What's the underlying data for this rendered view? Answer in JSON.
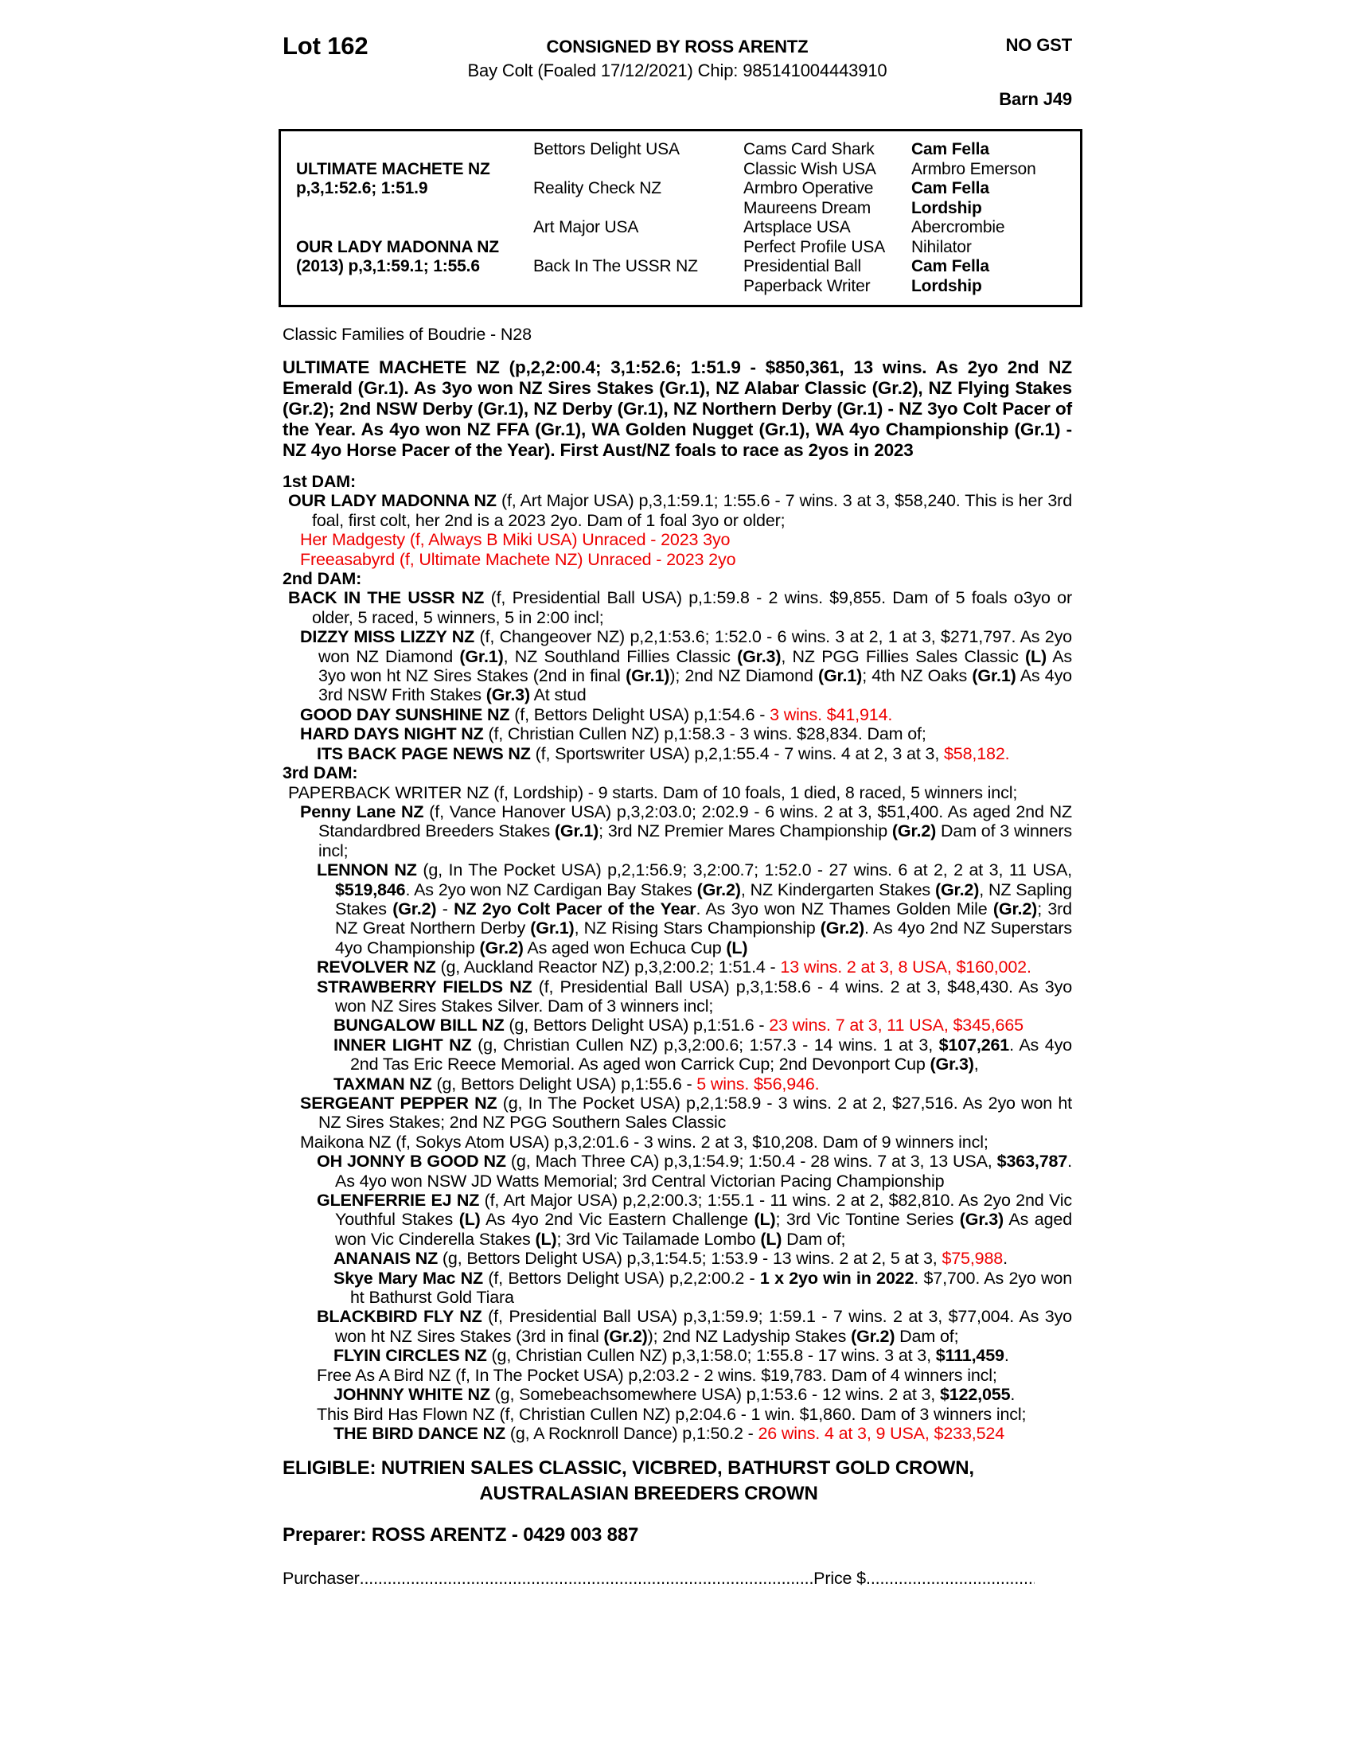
{
  "header": {
    "lot": "Lot 162",
    "consigned": "CONSIGNED BY ROSS ARENTZ",
    "no_gst": "NO GST",
    "subtitle": "Bay Colt (Foaled 17/12/2021) Chip: 985141004443910",
    "barn": "Barn J49"
  },
  "pedigree_table": {
    "sire_name": "ULTIMATE MACHETE NZ",
    "sire_record": "p,3,1:52.6; 1:51.9",
    "dam_name": "OUR LADY MADONNA NZ",
    "dam_record": "(2013) p,3,1:59.1; 1:55.6",
    "rows": [
      [
        {
          "t": ""
        },
        {
          "t": "Bettors Delight USA"
        },
        {
          "t": "Cams Card Shark"
        },
        {
          "t": "Cam Fella",
          "b": 1
        }
      ],
      [
        {
          "t": "ULTIMATE MACHETE NZ",
          "b": 1
        },
        {
          "t": ""
        },
        {
          "t": "Classic Wish USA"
        },
        {
          "t": "Armbro Emerson"
        }
      ],
      [
        {
          "t": "p,3,1:52.6; 1:51.9",
          "b": 1
        },
        {
          "t": "Reality Check NZ"
        },
        {
          "t": "Armbro Operative"
        },
        {
          "t": "Cam Fella",
          "b": 1
        }
      ],
      [
        {
          "t": ""
        },
        {
          "t": ""
        },
        {
          "t": "Maureens Dream"
        },
        {
          "t": "Lordship",
          "b": 1
        }
      ],
      [
        {
          "t": ""
        },
        {
          "t": "Art Major USA"
        },
        {
          "t": "Artsplace USA"
        },
        {
          "t": "Abercrombie"
        }
      ],
      [
        {
          "t": "OUR LADY MADONNA NZ",
          "b": 1
        },
        {
          "t": ""
        },
        {
          "t": "Perfect Profile USA"
        },
        {
          "t": "Nihilator"
        }
      ],
      [
        {
          "t": "(2013) p,3,1:59.1; 1:55.6",
          "b": 1
        },
        {
          "t": "Back In The USSR NZ"
        },
        {
          "t": "Presidential Ball"
        },
        {
          "t": "Cam Fella",
          "b": 1
        }
      ],
      [
        {
          "t": ""
        },
        {
          "t": ""
        },
        {
          "t": "Paperback Writer"
        },
        {
          "t": "Lordship",
          "b": 1
        }
      ]
    ]
  },
  "family_note": "Classic Families of Boudrie - N28",
  "sire_summary": "ULTIMATE MACHETE NZ (p,2,2:00.4; 3,1:52.6; 1:51.9 - $850,361, 13 wins. As 2yo 2nd NZ Emerald (Gr.1). As 3yo won NZ Sires Stakes (Gr.1), NZ Alabar Classic (Gr.2), NZ Flying Stakes (Gr.2); 2nd NSW Derby (Gr.1), NZ Derby (Gr.1), NZ Northern Derby (Gr.1) - NZ 3yo Colt Pacer of the Year. As 4yo won NZ FFA (Gr.1), WA Golden Nugget (Gr.1), WA 4yo Championship (Gr.1) - NZ 4yo Horse Pacer of the Year). First Aust/NZ foals to race as 2yos in 2023",
  "entries": [
    {
      "c": "i0",
      "n": "dam-header-1",
      "segs": [
        [
          "1st DAM:",
          "b"
        ]
      ]
    },
    {
      "c": "iD",
      "n": "entry-our-lady-madonna",
      "segs": [
        [
          "OUR LADY MADONNA NZ ",
          "b"
        ],
        [
          "(f, Art Major USA) p,3,1:59.1; 1:55.6 - 7 wins. 3 at 3, $58,240. This is her 3rd foal, first colt, her 2nd is a 2023 2yo. Dam of 1 foal 3yo or older;",
          ""
        ]
      ]
    },
    {
      "c": "i1",
      "n": "entry-her-madgesty",
      "segs": [
        [
          "Her Madgesty (f, Always B Miki USA) Unraced - 2023 3yo",
          "r"
        ]
      ]
    },
    {
      "c": "i1",
      "n": "entry-freeasabyrd",
      "segs": [
        [
          "Freeasabyrd (f, Ultimate Machete NZ) Unraced - 2023 2yo",
          "r"
        ]
      ]
    },
    {
      "c": "i0",
      "n": "dam-header-2",
      "segs": [
        [
          "2nd DAM:",
          "b"
        ]
      ]
    },
    {
      "c": "iD",
      "n": "entry-back-in-the-ussr",
      "segs": [
        [
          "BACK IN THE USSR NZ ",
          "b"
        ],
        [
          "(f, Presidential Ball USA) p,1:59.8 - 2 wins. $9,855. Dam of 5 foals o3yo or older, 5 raced, 5 winners, 5 in 2:00 incl;",
          ""
        ]
      ]
    },
    {
      "c": "i1",
      "n": "entry-dizzy-miss-lizzy",
      "segs": [
        [
          "DIZZY MISS LIZZY NZ ",
          "b"
        ],
        [
          "(f, Changeover NZ) p,2,1:53.6; 1:52.0 - 6 wins. 3 at 2, 1 at 3, $271,797. As 2yo won NZ Diamond ",
          ""
        ],
        [
          "(Gr.1)",
          "b"
        ],
        [
          ", NZ Southland Fillies Classic ",
          ""
        ],
        [
          "(Gr.3)",
          "b"
        ],
        [
          ", NZ PGG Fillies Sales Classic ",
          ""
        ],
        [
          "(L)",
          "b"
        ],
        [
          " As 3yo won ht NZ Sires Stakes (2nd in final ",
          ""
        ],
        [
          "(Gr.1)",
          "b"
        ],
        [
          "); 2nd NZ Diamond ",
          ""
        ],
        [
          "(Gr.1)",
          "b"
        ],
        [
          "; 4th NZ Oaks ",
          ""
        ],
        [
          "(Gr.1)",
          "b"
        ],
        [
          " As 4yo 3rd NSW Frith Stakes ",
          ""
        ],
        [
          "(Gr.3)",
          "b"
        ],
        [
          " At stud",
          ""
        ]
      ]
    },
    {
      "c": "i1",
      "n": "entry-good-day-sunshine",
      "segs": [
        [
          "GOOD DAY SUNSHINE NZ ",
          "b"
        ],
        [
          "(f, Bettors Delight USA) p,1:54.6 - ",
          ""
        ],
        [
          "3 wins. $41,914.",
          "r"
        ]
      ]
    },
    {
      "c": "i1",
      "n": "entry-hard-days-night",
      "segs": [
        [
          "HARD DAYS NIGHT NZ ",
          "b"
        ],
        [
          "(f, Christian Cullen NZ) p,1:58.3 - 3 wins. $28,834. Dam of;",
          ""
        ]
      ]
    },
    {
      "c": "i2",
      "n": "entry-its-back-page-news",
      "segs": [
        [
          "ITS BACK PAGE NEWS NZ ",
          "b"
        ],
        [
          "(f, Sportswriter USA) p,2,1:55.4 - 7 wins. 4 at 2, 3 at 3, ",
          ""
        ],
        [
          "$58,182.",
          "r"
        ]
      ]
    },
    {
      "c": "i0",
      "n": "dam-header-3",
      "segs": [
        [
          "3rd DAM:",
          "b"
        ]
      ]
    },
    {
      "c": "iD",
      "n": "entry-paperback-writer",
      "segs": [
        [
          "PAPERBACK WRITER NZ (f, Lordship) - 9 starts. Dam of 10 foals, 1 died, 8 raced, 5 winners incl;",
          ""
        ]
      ]
    },
    {
      "c": "i1",
      "n": "entry-penny-lane",
      "segs": [
        [
          "Penny Lane NZ ",
          "b"
        ],
        [
          "(f, Vance Hanover USA) p,3,2:03.0; 2:02.9 - 6 wins. 2 at 3, $51,400. As aged 2nd NZ Standardbred Breeders Stakes ",
          ""
        ],
        [
          "(Gr.1)",
          "b"
        ],
        [
          "; 3rd NZ Premier Mares Championship ",
          ""
        ],
        [
          "(Gr.2)",
          "b"
        ],
        [
          " Dam of 3 winners incl;",
          ""
        ]
      ]
    },
    {
      "c": "i2",
      "n": "entry-lennon",
      "segs": [
        [
          "LENNON NZ ",
          "b"
        ],
        [
          "(g, In The Pocket USA) p,2,1:56.9; 3,2:00.7; 1:52.0 - 27 wins. 6 at 2, 2 at 3, 11 USA, ",
          ""
        ],
        [
          "$519,846",
          "b"
        ],
        [
          ". As 2yo won NZ Cardigan Bay Stakes ",
          ""
        ],
        [
          "(Gr.2)",
          "b"
        ],
        [
          ", NZ Kindergarten Stakes ",
          ""
        ],
        [
          "(Gr.2)",
          "b"
        ],
        [
          ", NZ Sapling Stakes ",
          ""
        ],
        [
          "(Gr.2)",
          "b"
        ],
        [
          " - ",
          ""
        ],
        [
          "NZ 2yo Colt Pacer of the Year",
          "b"
        ],
        [
          ". As 3yo won NZ Thames Golden Mile ",
          ""
        ],
        [
          "(Gr.2)",
          "b"
        ],
        [
          "; 3rd NZ Great Northern Derby ",
          ""
        ],
        [
          "(Gr.1)",
          "b"
        ],
        [
          ", NZ Rising Stars Championship ",
          ""
        ],
        [
          "(Gr.2)",
          "b"
        ],
        [
          ". As 4yo 2nd NZ Superstars 4yo Championship ",
          ""
        ],
        [
          "(Gr.2)",
          "b"
        ],
        [
          " As aged won Echuca Cup ",
          ""
        ],
        [
          "(L)",
          "b"
        ]
      ]
    },
    {
      "c": "i2",
      "n": "entry-revolver",
      "segs": [
        [
          "REVOLVER NZ ",
          "b"
        ],
        [
          "(g, Auckland Reactor NZ) p,3,2:00.2; 1:51.4 - ",
          ""
        ],
        [
          "13 wins. 2 at 3, 8 USA, $160,002.",
          "r"
        ]
      ]
    },
    {
      "c": "i2",
      "n": "entry-strawberry-fields",
      "segs": [
        [
          "STRAWBERRY FIELDS NZ ",
          "b"
        ],
        [
          "(f, Presidential Ball USA) p,3,1:58.6 - 4 wins. 2 at 3, $48,430. As 3yo won NZ Sires Stakes Silver. Dam of 3 winners incl;",
          ""
        ]
      ]
    },
    {
      "c": "i3",
      "n": "entry-bungalow-bill",
      "segs": [
        [
          "BUNGALOW BILL NZ ",
          "b"
        ],
        [
          "(g, Bettors Delight USA) p,1:51.6 - ",
          ""
        ],
        [
          "23 wins. 7 at 3, 11 USA, $345,665",
          "r"
        ]
      ]
    },
    {
      "c": "i3",
      "n": "entry-inner-light",
      "segs": [
        [
          "INNER LIGHT NZ ",
          "b"
        ],
        [
          "(g, Christian Cullen NZ) p,3,2:00.6; 1:57.3 - 14 wins. 1 at 3, ",
          ""
        ],
        [
          "$107,261",
          "b"
        ],
        [
          ". As 4yo 2nd Tas Eric Reece Memorial. As aged won Carrick Cup; 2nd Devonport Cup ",
          ""
        ],
        [
          "(Gr.3)",
          "b"
        ],
        [
          ",",
          ""
        ]
      ]
    },
    {
      "c": "i3",
      "n": "entry-taxman",
      "segs": [
        [
          "TAXMAN NZ ",
          "b"
        ],
        [
          "(g, Bettors Delight USA) p,1:55.6 - ",
          ""
        ],
        [
          "5 wins. $56,946.",
          "r"
        ]
      ]
    },
    {
      "c": "i1",
      "n": "entry-sergeant-pepper",
      "segs": [
        [
          "SERGEANT PEPPER NZ ",
          "b"
        ],
        [
          "(g, In The Pocket USA) p,2,1:58.9 - 3 wins. 2 at 2, $27,516. As 2yo won ht NZ Sires Stakes; 2nd NZ PGG Southern Sales Classic",
          ""
        ]
      ]
    },
    {
      "c": "i1",
      "n": "entry-maikona",
      "segs": [
        [
          "Maikona NZ (f, Sokys Atom USA) p,3,2:01.6 - 3 wins. 2 at 3, $10,208. Dam of 9 winners incl;",
          ""
        ]
      ]
    },
    {
      "c": "i2",
      "n": "entry-oh-jonny-b-good",
      "segs": [
        [
          "OH JONNY B GOOD NZ ",
          "b"
        ],
        [
          "(g, Mach Three CA) p,3,1:54.9; 1:50.4 - 28 wins. 7 at 3, 13 USA, ",
          ""
        ],
        [
          "$363,787",
          "b"
        ],
        [
          ". As 4yo won NSW JD Watts Memorial; 3rd Central Victorian Pacing Championship",
          ""
        ]
      ]
    },
    {
      "c": "i2",
      "n": "entry-glenferrie-ej",
      "segs": [
        [
          "GLENFERRIE EJ NZ ",
          "b"
        ],
        [
          "(f, Art Major USA) p,2,2:00.3; 1:55.1 - 11 wins. 2 at 2, $82,810. As 2yo 2nd Vic Youthful Stakes ",
          ""
        ],
        [
          "(L)",
          "b"
        ],
        [
          " As 4yo 2nd Vic Eastern Challenge ",
          ""
        ],
        [
          "(L)",
          "b"
        ],
        [
          "; 3rd Vic Tontine Series ",
          ""
        ],
        [
          "(Gr.3)",
          "b"
        ],
        [
          " As aged won Vic Cinderella Stakes ",
          ""
        ],
        [
          "(L)",
          "b"
        ],
        [
          "; 3rd Vic Tailamade Lombo ",
          ""
        ],
        [
          "(L)",
          "b"
        ],
        [
          " Dam of;",
          ""
        ]
      ]
    },
    {
      "c": "i3",
      "n": "entry-ananais",
      "segs": [
        [
          "ANANAIS NZ ",
          "b"
        ],
        [
          "(g, Bettors Delight USA) p,3,1:54.5; 1:53.9 - 13 wins. 2 at 2, 5 at 3, ",
          ""
        ],
        [
          "$75,988",
          "r"
        ],
        [
          ".",
          ""
        ]
      ]
    },
    {
      "c": "i3",
      "n": "entry-skye-mary-mac",
      "segs": [
        [
          "Skye Mary Mac NZ ",
          "b"
        ],
        [
          "(f, Bettors Delight USA) p,2,2:00.2 - ",
          ""
        ],
        [
          "1 x 2yo win in 2022",
          "b"
        ],
        [
          ". $7,700. As 2yo won ht Bathurst Gold Tiara",
          ""
        ]
      ]
    },
    {
      "c": "i2",
      "n": "entry-blackbird-fly",
      "segs": [
        [
          "BLACKBIRD FLY NZ ",
          "b"
        ],
        [
          "(f, Presidential Ball USA) p,3,1:59.9; 1:59.1 - 7 wins. 2 at 3, $77,004. As 3yo won ht NZ Sires Stakes (3rd in final ",
          ""
        ],
        [
          "(Gr.2)",
          "b"
        ],
        [
          "); 2nd NZ Ladyship Stakes ",
          ""
        ],
        [
          "(Gr.2)",
          "b"
        ],
        [
          " Dam of;",
          ""
        ]
      ]
    },
    {
      "c": "i3",
      "n": "entry-flyin-circles",
      "segs": [
        [
          "FLYIN CIRCLES NZ ",
          "b"
        ],
        [
          "(g, Christian Cullen NZ) p,3,1:58.0; 1:55.8 - 17 wins. 3 at 3, ",
          ""
        ],
        [
          "$111,459",
          "b"
        ],
        [
          ".",
          ""
        ]
      ]
    },
    {
      "c": "i2",
      "n": "entry-free-as-a-bird",
      "segs": [
        [
          "Free As A Bird NZ (f, In The Pocket USA) p,2:03.2 - 2 wins. $19,783. Dam of 4 winners incl;",
          ""
        ]
      ]
    },
    {
      "c": "i3",
      "n": "entry-johnny-white",
      "segs": [
        [
          "JOHNNY WHITE NZ ",
          "b"
        ],
        [
          "(g, Somebeachsomewhere USA) p,1:53.6 - 12 wins. 2 at 3, ",
          ""
        ],
        [
          "$122,055",
          "b"
        ],
        [
          ".",
          ""
        ]
      ]
    },
    {
      "c": "i2",
      "n": "entry-this-bird-has-flown",
      "segs": [
        [
          "This Bird Has Flown NZ (f, Christian Cullen NZ) p,2:04.6 - 1 win. $1,860. Dam of 3 winners incl;",
          ""
        ]
      ]
    },
    {
      "c": "i3",
      "n": "entry-the-bird-dance",
      "segs": [
        [
          "THE BIRD DANCE NZ ",
          "b"
        ],
        [
          "(g, A Rocknroll Dance) p,1:50.2 - ",
          ""
        ],
        [
          "26 wins. 4 at 3, 9 USA, $233,524",
          "r"
        ]
      ]
    }
  ],
  "eligible": {
    "line1": "ELIGIBLE: NUTRIEN SALES CLASSIC, VICBRED, BATHURST GOLD CROWN,",
    "line2": "AUSTRALASIAN BREEDERS CROWN"
  },
  "preparer": "Preparer: ROSS ARENTZ - 0429 003 887",
  "footer": {
    "purchaser_label": "Purchaser",
    "price_label": "Price $",
    "dots": "........................................................................................................................................................................"
  },
  "colors": {
    "highlight_red": "#ee0000",
    "text": "#000000"
  }
}
